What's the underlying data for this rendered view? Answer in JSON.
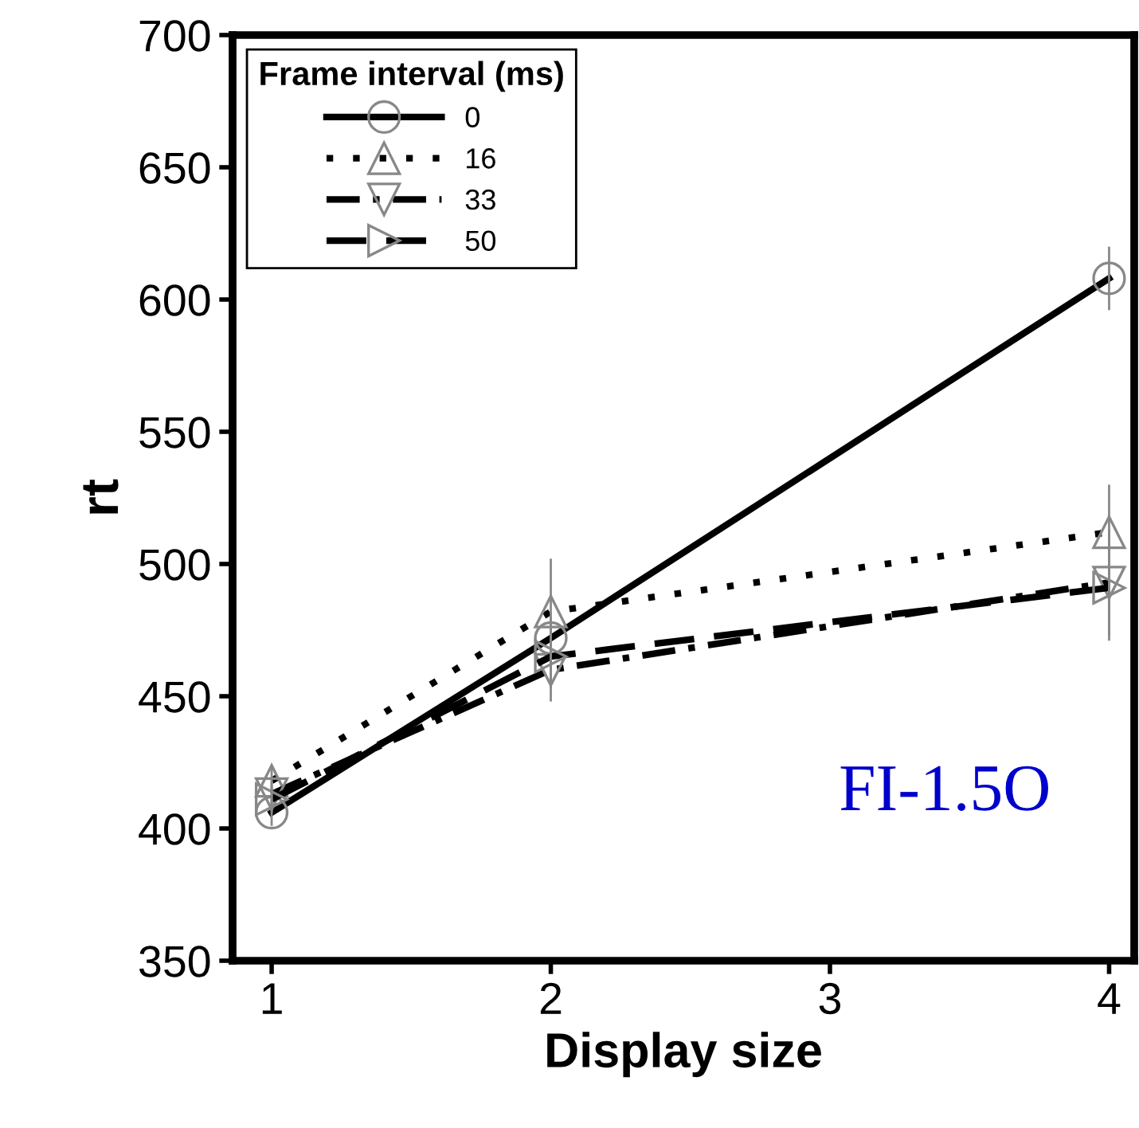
{
  "chart_data": {
    "type": "line",
    "xlabel": "Display size",
    "ylabel": "rt",
    "legend_title": "Frame interval (ms)",
    "legend": "top left",
    "grid": false,
    "x": [
      1,
      2,
      4
    ],
    "xlim": [
      0.86,
      4.09
    ],
    "xticks": [
      1,
      2,
      3,
      4
    ],
    "ylim": [
      350,
      700
    ],
    "yticks": [
      350,
      400,
      450,
      500,
      550,
      600,
      650,
      700
    ],
    "series": [
      {
        "name": "0",
        "color": "#000000",
        "marker": "circle",
        "line_style": "solid",
        "values": [
          406,
          472,
          608
        ],
        "errors": [
          5,
          8,
          12
        ]
      },
      {
        "name": "16",
        "color": "#000000",
        "marker": "triangle",
        "line_style": "dotted",
        "values": [
          418,
          482,
          512
        ],
        "errors": [
          5,
          20,
          18
        ]
      },
      {
        "name": "33",
        "color": "#000000",
        "marker": "triangle_down",
        "line_style": "dashdot",
        "values": [
          413,
          460,
          493
        ],
        "errors": [
          5,
          12,
          20
        ]
      },
      {
        "name": "50",
        "color": "#000000",
        "marker": "triangle_right",
        "line_style": "dashed",
        "values": [
          411,
          465,
          491
        ],
        "errors": [
          5,
          12,
          20
        ]
      }
    ],
    "annotations": [
      "FI-1.5O"
    ]
  }
}
